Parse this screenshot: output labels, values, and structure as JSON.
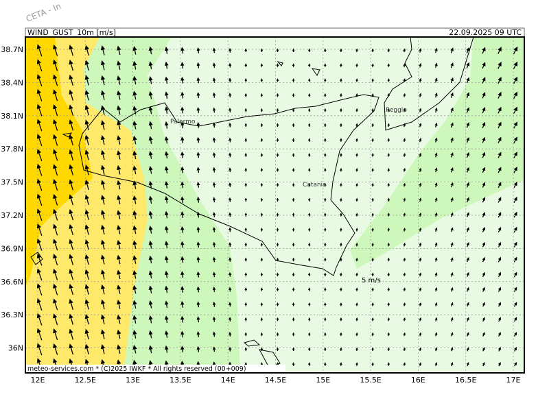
{
  "header": {
    "corner_label": "CETA - In",
    "field": "WIND_GUST_10m [m/s]",
    "valid_time": "22.09.2025 09 UTC"
  },
  "map": {
    "lat_labels": [
      "38.7N",
      "38.4N",
      "38.1N",
      "37.8N",
      "37.5N",
      "37.2N",
      "36.9N",
      "36.6N",
      "36.3N",
      "36N"
    ],
    "lon_labels": [
      "12E",
      "12.5E",
      "13E",
      "13.5E",
      "14E",
      "14.5E",
      "15E",
      "15.5E",
      "16E",
      "16.5E",
      "17E"
    ],
    "places": [
      "Palermo",
      "Catania",
      "Reggio"
    ],
    "contour_label": "5 m/s"
  },
  "footer": "meteo-services.com * (C)2025 IWKF * All rights reserved (00+009)"
}
